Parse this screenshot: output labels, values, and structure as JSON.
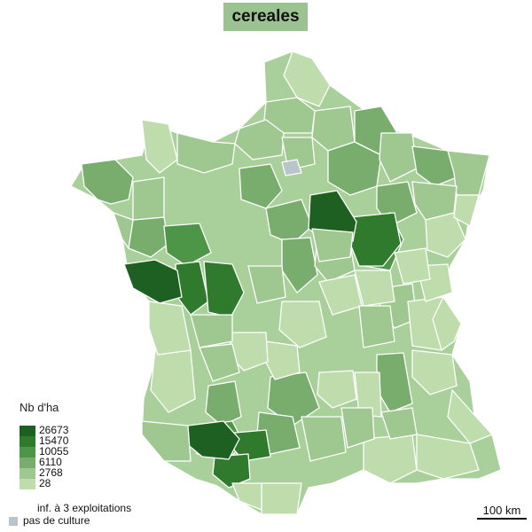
{
  "title": "cereales",
  "legend": {
    "title": "Nb d'ha",
    "classes": [
      {
        "label": "26673",
        "color": "#1e5f22"
      },
      {
        "label": "15470",
        "color": "#2f7a2c"
      },
      {
        "label": "10055",
        "color": "#4e9647"
      },
      {
        "label": "6110",
        "color": "#79ad6e"
      },
      {
        "label": "2768",
        "color": "#9fc790"
      },
      {
        "label": "28",
        "color": "#bfdcad"
      }
    ],
    "low_count_label": "inf. à 3 exploitations",
    "low_count_color": "#ffffff",
    "no_culture_label": "pas de culture",
    "no_culture_color": "#b9c4cc"
  },
  "scale_label": "100 km",
  "map": {
    "border_color": "#ffffff",
    "background": "#ffffff"
  }
}
